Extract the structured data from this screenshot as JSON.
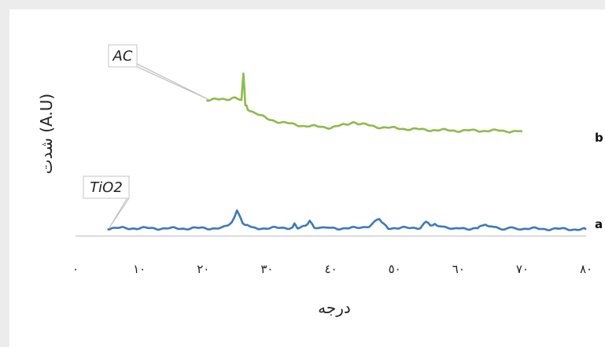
{
  "chart_data": {
    "type": "line",
    "xlabel": "درجه",
    "ylabel": "شدت (A.U)",
    "xlim": [
      0,
      80
    ],
    "x_ticks": [
      0,
      10,
      20,
      30,
      40,
      50,
      60,
      70,
      80
    ],
    "x_tick_labels": [
      "٠",
      "١٠",
      "٢٠",
      "٣٠",
      "٤٠",
      "٥٠",
      "٦٠",
      "٧٠",
      "٨٠"
    ],
    "grid": false,
    "series": [
      {
        "name": "AC",
        "end_label": "b",
        "color": "#8dbb4a",
        "x": [
          20.5,
          22,
          23,
          24,
          25,
          26,
          26.3,
          26.6,
          27,
          28,
          29,
          30,
          32,
          34,
          36,
          38,
          40,
          42,
          43.5,
          45,
          47,
          50,
          55,
          60,
          65,
          70
        ],
        "y": [
          56,
          57,
          58,
          57,
          58,
          55,
          90,
          50,
          45,
          40,
          36,
          32,
          28,
          25,
          23,
          22,
          21,
          24,
          26,
          25,
          22,
          20,
          18,
          17,
          17,
          16
        ]
      },
      {
        "name": "TiO2",
        "end_label": "a",
        "color": "#3b78c0",
        "x": [
          5,
          10,
          15,
          20,
          23,
          24.5,
          25.3,
          26.2,
          28,
          32,
          34,
          34.3,
          34.8,
          36,
          36.7,
          37.4,
          40,
          44,
          46,
          47.6,
          49,
          52,
          54,
          54.9,
          55.6,
          56.3,
          57.5,
          60,
          63,
          64.2,
          65.5,
          70,
          75,
          80
        ],
        "y": [
          3,
          3,
          2.6,
          3,
          3,
          10,
          26,
          8,
          3,
          3.2,
          4,
          8,
          3.5,
          5,
          12,
          4.5,
          3,
          3,
          6,
          14,
          3.5,
          3,
          4,
          11,
          6,
          8,
          3.5,
          2.5,
          3,
          9,
          3,
          2.5,
          2,
          1.5
        ]
      }
    ],
    "annotations": [
      "AC",
      "TiO2",
      "b",
      "a"
    ]
  }
}
